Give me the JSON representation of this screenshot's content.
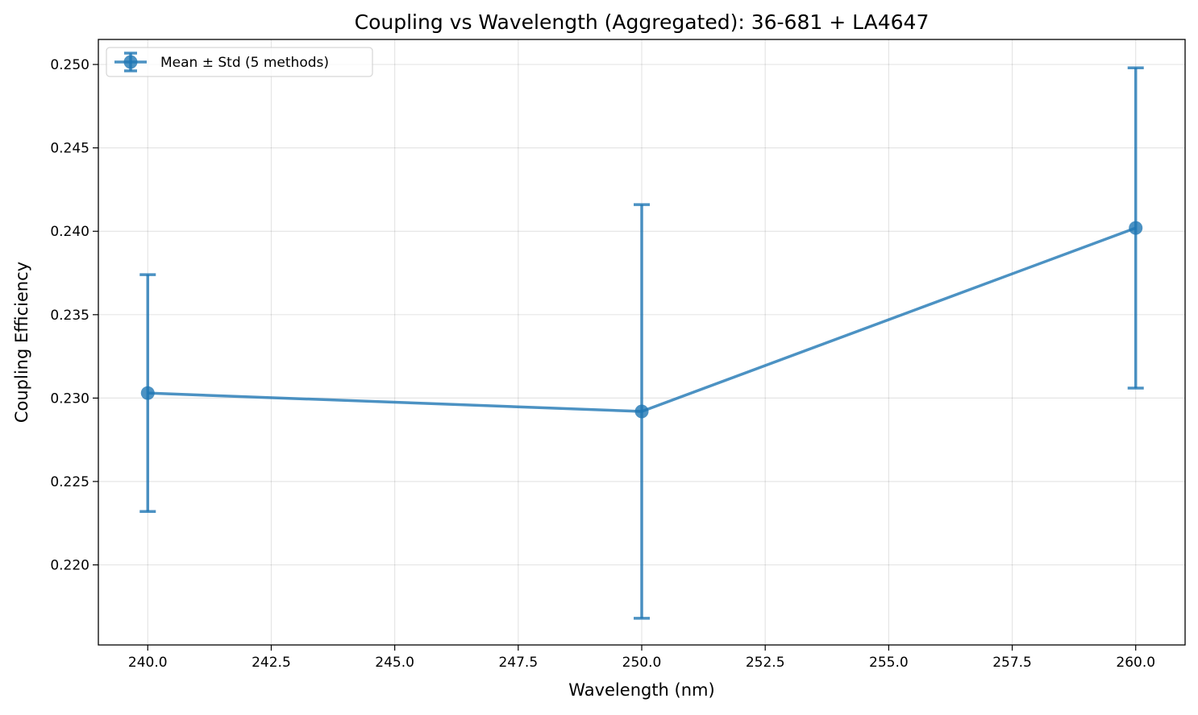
{
  "chart_data": {
    "type": "line",
    "title": "Coupling vs Wavelength (Aggregated): 36-681 + LA4647",
    "xlabel": "Wavelength (nm)",
    "ylabel": "Coupling Efficiency",
    "xlim": [
      239.0,
      261.0
    ],
    "ylim": [
      0.2152,
      0.2515
    ],
    "x_ticks": [
      "240.0",
      "242.5",
      "245.0",
      "247.5",
      "250.0",
      "252.5",
      "255.0",
      "257.5",
      "260.0"
    ],
    "y_ticks": [
      "0.220",
      "0.225",
      "0.230",
      "0.235",
      "0.240",
      "0.245",
      "0.250"
    ],
    "grid": true,
    "legend_position": "upper-left",
    "series": [
      {
        "name": "Mean ± Std (5 methods)",
        "color": "#1f77b4",
        "marker": "circle",
        "x": [
          240.0,
          250.0,
          260.0
        ],
        "y": [
          0.2303,
          0.2292,
          0.2402
        ],
        "y_err": [
          0.0071,
          0.0124,
          0.0096
        ]
      }
    ]
  }
}
